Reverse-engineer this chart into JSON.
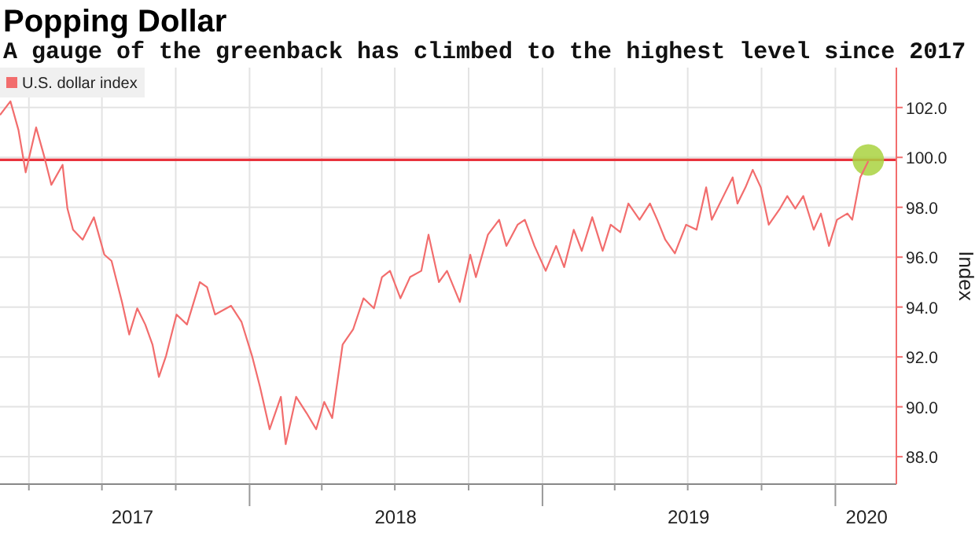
{
  "chart_data": {
    "type": "line",
    "title": "Popping Dollar",
    "subtitle": "A gauge of the greenback has climbed to the highest level since 2017",
    "ylabel": "Index",
    "xlim": [
      "2017-02-24",
      "2020-03-17"
    ],
    "ylim": [
      86.9,
      103.6
    ],
    "yticks": [
      {
        "value": 88,
        "label": "88.0"
      },
      {
        "value": 90,
        "label": "90.0"
      },
      {
        "value": 92,
        "label": "92.0"
      },
      {
        "value": 94,
        "label": "94.0"
      },
      {
        "value": 96,
        "label": "96.0"
      },
      {
        "value": 98,
        "label": "98.0"
      },
      {
        "value": 100,
        "label": "100.0"
      },
      {
        "value": 102,
        "label": "102.0"
      }
    ],
    "xticks": [
      {
        "value": "2017-04-01",
        "label": null
      },
      {
        "value": "2017-07-01",
        "label": null
      },
      {
        "value": "2017-10-01",
        "label": null
      },
      {
        "value": "2018-01-01",
        "label": null
      },
      {
        "value": "2018-04-01",
        "label": null
      },
      {
        "value": "2018-07-01",
        "label": null
      },
      {
        "value": "2018-10-01",
        "label": null
      },
      {
        "value": "2019-01-01",
        "label": null
      },
      {
        "value": "2019-04-01",
        "label": null
      },
      {
        "value": "2019-07-01",
        "label": null
      },
      {
        "value": "2019-10-01",
        "label": null
      },
      {
        "value": "2020-01-01",
        "label": null
      },
      {
        "value": "2017-08-08",
        "label": "2017"
      },
      {
        "value": "2018-07-02",
        "label": "2018"
      },
      {
        "value": "2019-07-02",
        "label": "2019"
      },
      {
        "value": "2020-02-09",
        "label": "2020"
      }
    ],
    "grid": true,
    "legend": "top left",
    "ref_lines": [
      {
        "axis": "y",
        "value": 99.9,
        "color": "#e8323c"
      }
    ],
    "series": [
      {
        "name": "U.S. dollar index",
        "color": "#f26d6d",
        "x": [
          "2017-02-24",
          "2017-03-09",
          "2017-03-19",
          "2017-03-28",
          "2017-04-10",
          "2017-04-20",
          "2017-04-29",
          "2017-05-13",
          "2017-05-19",
          "2017-05-26",
          "2017-06-07",
          "2017-06-21",
          "2017-07-04",
          "2017-07-13",
          "2017-07-26",
          "2017-08-04",
          "2017-08-14",
          "2017-08-24",
          "2017-09-02",
          "2017-09-10",
          "2017-09-19",
          "2017-10-02",
          "2017-10-15",
          "2017-10-31",
          "2017-11-09",
          "2017-11-19",
          "2017-12-09",
          "2017-12-22",
          "2018-01-04",
          "2018-01-14",
          "2018-01-26",
          "2018-02-09",
          "2018-02-15",
          "2018-02-28",
          "2018-03-13",
          "2018-03-25",
          "2018-04-04",
          "2018-04-14",
          "2018-04-27",
          "2018-05-10",
          "2018-05-23",
          "2018-06-05",
          "2018-06-15",
          "2018-06-25",
          "2018-07-08",
          "2018-07-20",
          "2018-08-03",
          "2018-08-12",
          "2018-08-25",
          "2018-09-04",
          "2018-09-20",
          "2018-10-03",
          "2018-10-10",
          "2018-10-25",
          "2018-11-08",
          "2018-11-17",
          "2018-12-01",
          "2018-12-10",
          "2018-12-22",
          "2019-01-05",
          "2019-01-18",
          "2019-01-28",
          "2019-02-09",
          "2019-02-19",
          "2019-03-04",
          "2019-03-17",
          "2019-03-27",
          "2019-04-08",
          "2019-04-18",
          "2019-05-02",
          "2019-05-15",
          "2019-05-24",
          "2019-06-03",
          "2019-06-15",
          "2019-06-29",
          "2019-07-12",
          "2019-07-24",
          "2019-07-31",
          "2019-08-13",
          "2019-08-26",
          "2019-09-01",
          "2019-09-11",
          "2019-09-20",
          "2019-09-30",
          "2019-10-10",
          "2019-10-24",
          "2019-11-02",
          "2019-11-12",
          "2019-11-22",
          "2019-12-05",
          "2019-12-14",
          "2019-12-24",
          "2020-01-03",
          "2020-01-16",
          "2020-01-22",
          "2020-02-01",
          "2020-02-11"
        ],
        "values": [
          101.7,
          102.25,
          101.1,
          99.4,
          101.2,
          100.05,
          98.9,
          99.7,
          97.95,
          97.1,
          96.7,
          97.6,
          96.1,
          95.85,
          94.2,
          92.9,
          93.95,
          93.3,
          92.5,
          91.2,
          92.05,
          93.7,
          93.3,
          95.0,
          94.8,
          93.7,
          94.05,
          93.4,
          92.05,
          90.8,
          89.1,
          90.4,
          88.5,
          90.4,
          89.75,
          89.1,
          90.2,
          89.55,
          92.5,
          93.1,
          94.35,
          93.95,
          95.2,
          95.45,
          94.35,
          95.2,
          95.45,
          96.9,
          95.0,
          95.45,
          94.2,
          96.1,
          95.2,
          96.9,
          97.5,
          96.45,
          97.3,
          97.5,
          96.45,
          95.45,
          96.45,
          95.6,
          97.1,
          96.25,
          97.6,
          96.25,
          97.3,
          97.0,
          98.15,
          97.5,
          98.15,
          97.5,
          96.7,
          96.15,
          97.3,
          97.1,
          98.8,
          97.5,
          98.35,
          99.2,
          98.15,
          98.8,
          99.5,
          98.8,
          97.3,
          97.95,
          98.45,
          97.95,
          98.45,
          97.1,
          97.75,
          96.45,
          97.5,
          97.75,
          97.5,
          99.2,
          99.85
        ]
      },
      {
        "type": "scatter",
        "color": "#a9d23f",
        "marker": "circle",
        "x": [
          "2020-02-11"
        ],
        "values": [
          99.9
        ]
      }
    ]
  }
}
